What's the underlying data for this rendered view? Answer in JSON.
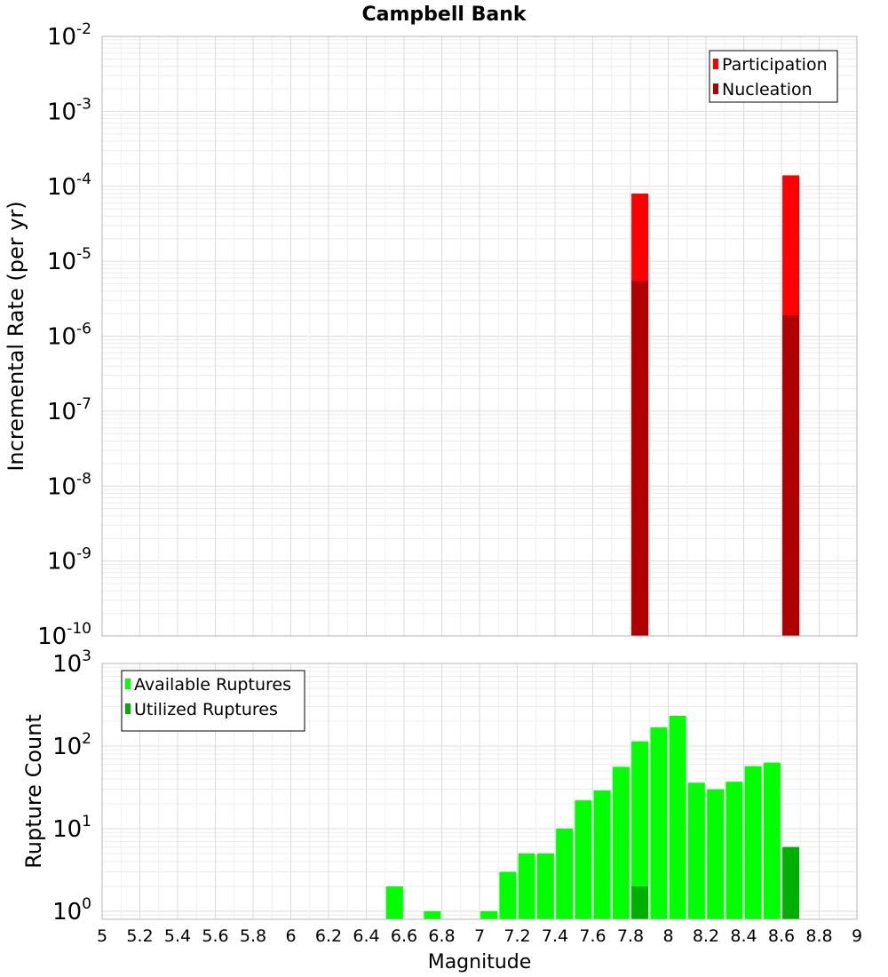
{
  "chart_data": {
    "title": "Campbell Bank",
    "xlabel": "Magnitude",
    "xlim": [
      5,
      9
    ],
    "x_ticks": [
      "5",
      "5.2",
      "5.4",
      "5.6",
      "5.8",
      "6",
      "6.2",
      "6.4",
      "6.6",
      "6.8",
      "7",
      "7.2",
      "7.4",
      "7.6",
      "7.8",
      "8",
      "8.2",
      "8.4",
      "8.6",
      "8.8",
      "9"
    ],
    "panels": [
      {
        "type": "bar",
        "ylabel": "Incremental Rate (per yr)",
        "yscale": "log",
        "ylim": [
          1e-10,
          0.01
        ],
        "y_tick_exponents": [
          -10,
          -9,
          -8,
          -7,
          -6,
          -5,
          -4,
          -3,
          -2
        ],
        "grid": true,
        "legend": {
          "position": "top-right"
        },
        "series": [
          {
            "name": "Participation",
            "color": "#ff0000",
            "x": [
              7.85,
              8.65
            ],
            "values": [
              8e-05,
              0.00014
            ]
          },
          {
            "name": "Nucleation",
            "color": "#b00000",
            "x": [
              7.85,
              8.65
            ],
            "values": [
              5.5e-06,
              1.9e-06
            ]
          }
        ]
      },
      {
        "type": "bar",
        "ylabel": "Rupture Count",
        "yscale": "log",
        "ylim": [
          0.8,
          1000
        ],
        "y_tick_exponents": [
          0,
          1,
          2,
          3
        ],
        "grid": true,
        "legend": {
          "position": "top-left"
        },
        "series": [
          {
            "name": "Available Ruptures",
            "color": "#00ff00",
            "x": [
              6.55,
              6.75,
              7.05,
              7.15,
              7.25,
              7.35,
              7.45,
              7.55,
              7.65,
              7.75,
              7.85,
              7.95,
              8.05,
              8.15,
              8.25,
              8.35,
              8.45,
              8.55
            ],
            "values": [
              2,
              1,
              1,
              3,
              5,
              5,
              10,
              22,
              29,
              56,
              114,
              168,
              232,
              36,
              30,
              37,
              57,
              63
            ]
          },
          {
            "name": "Utilized Ruptures",
            "color": "#00b000",
            "x": [
              7.85,
              8.65
            ],
            "values": [
              2,
              6
            ]
          }
        ]
      }
    ]
  }
}
